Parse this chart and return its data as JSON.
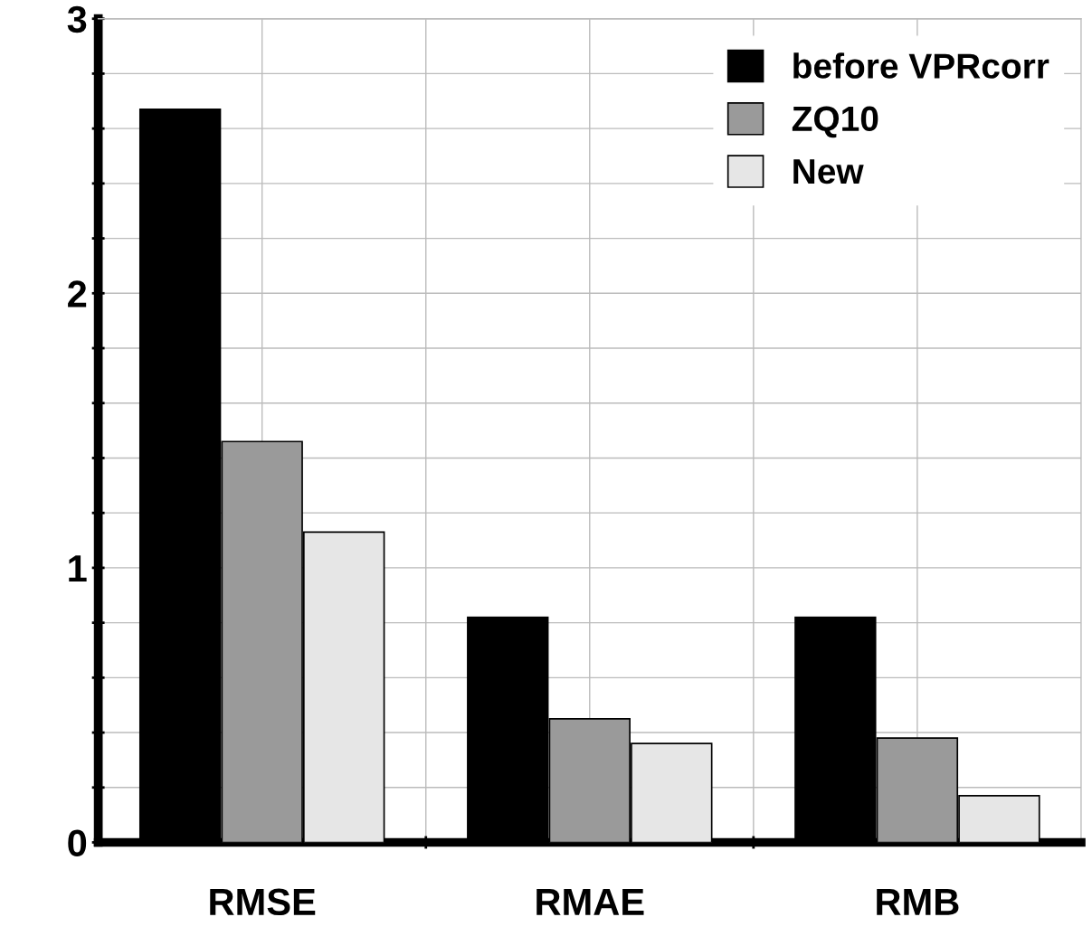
{
  "chart_data": {
    "type": "bar",
    "categories": [
      "RMSE",
      "RMAE",
      "RMB"
    ],
    "series": [
      {
        "name": "before VPRcorr",
        "color": "#000000",
        "values": [
          2.67,
          0.82,
          0.82
        ]
      },
      {
        "name": "ZQ10",
        "color": "#9a9a9a",
        "values": [
          1.46,
          0.45,
          0.38
        ]
      },
      {
        "name": "New",
        "color": "#e6e6e6",
        "values": [
          1.13,
          0.36,
          0.17
        ]
      }
    ],
    "ylim": [
      0,
      3
    ],
    "yticks": [
      0,
      {
        "value": 0.2,
        "label": null
      },
      {
        "value": 0.4,
        "label": null
      },
      {
        "value": 0.6,
        "label": null
      },
      {
        "value": 0.8,
        "label": null
      },
      1,
      {
        "value": 1.2,
        "label": null
      },
      {
        "value": 1.4,
        "label": null
      },
      {
        "value": 1.6,
        "label": null
      },
      {
        "value": 1.8,
        "label": null
      },
      2,
      {
        "value": 2.2,
        "label": null
      },
      {
        "value": 2.4,
        "label": null
      },
      {
        "value": 2.6,
        "label": null
      },
      {
        "value": 2.8,
        "label": null
      },
      3
    ],
    "grid": true,
    "legend": "top right"
  }
}
